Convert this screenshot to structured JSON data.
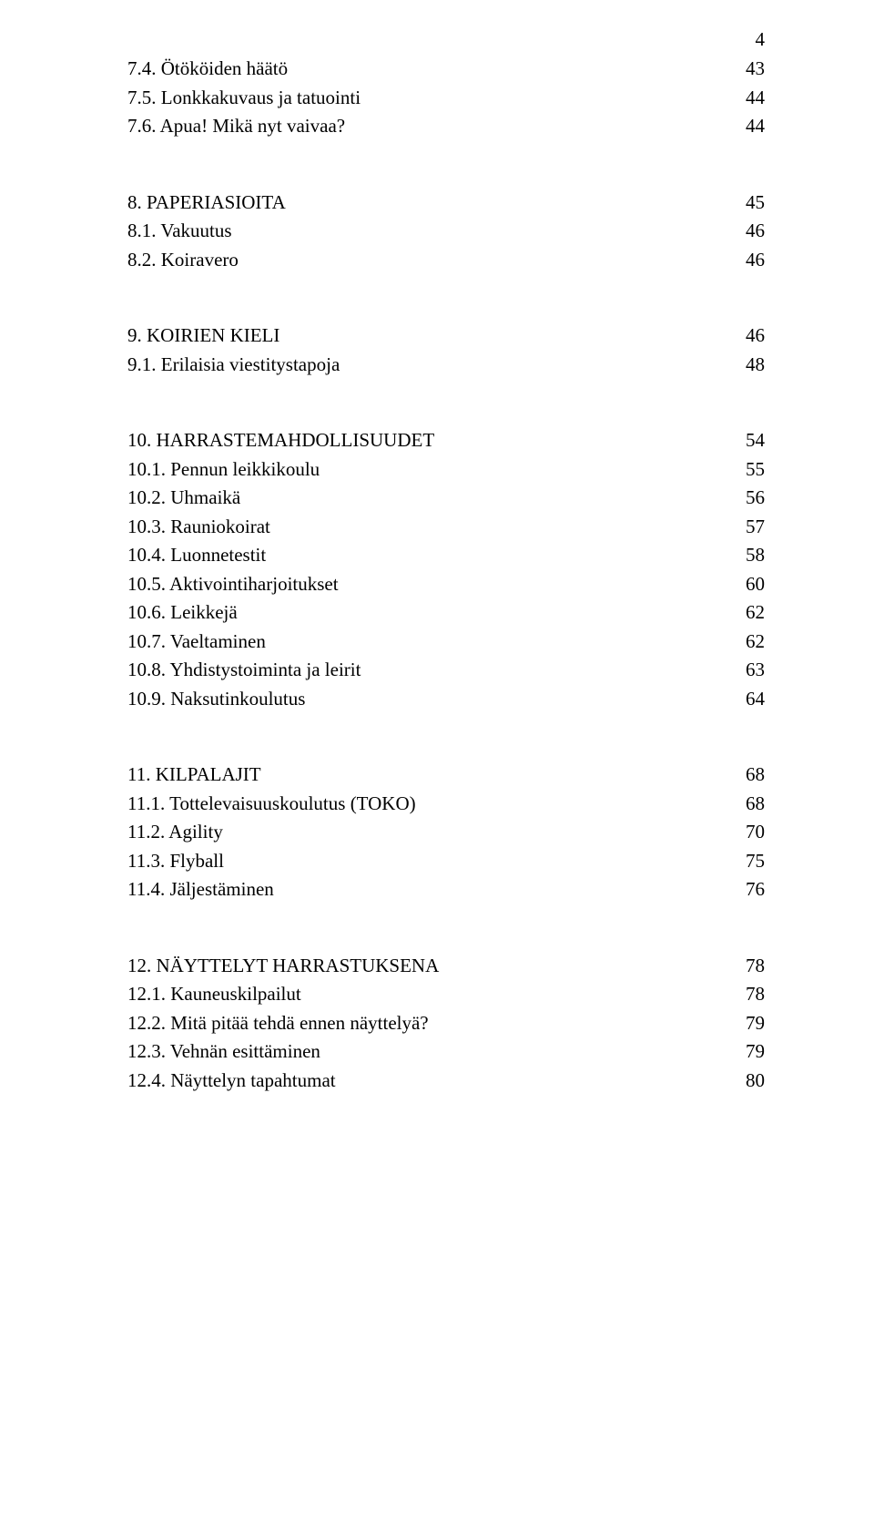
{
  "pageNumber": "4",
  "sections": [
    {
      "rows": [
        {
          "label": "7.4. Ötököiden häätö",
          "page": "43"
        },
        {
          "label": "7.5. Lonkkakuvaus ja tatuointi",
          "page": "44"
        },
        {
          "label": "7.6. Apua! Mikä nyt vaivaa?",
          "page": "44"
        }
      ]
    },
    {
      "rows": [
        {
          "label": "8. PAPERIASIOITA",
          "page": "45"
        },
        {
          "label": "8.1. Vakuutus",
          "page": "46"
        },
        {
          "label": "8.2. Koiravero",
          "page": "46"
        }
      ]
    },
    {
      "rows": [
        {
          "label": "9. KOIRIEN KIELI",
          "page": "46"
        },
        {
          "label": "9.1. Erilaisia viestitystapoja",
          "page": "48"
        }
      ]
    },
    {
      "rows": [
        {
          "label": "10. HARRASTEMAHDOLLISUUDET",
          "page": "54"
        },
        {
          "label": "10.1. Pennun leikkikoulu",
          "page": "55"
        },
        {
          "label": "10.2. Uhmaikä",
          "page": "56"
        },
        {
          "label": "10.3. Rauniokoirat",
          "page": "57"
        },
        {
          "label": "10.4. Luonnetestit",
          "page": "58"
        },
        {
          "label": "10.5. Aktivointiharjoitukset",
          "page": "60"
        },
        {
          "label": "10.6. Leikkejä",
          "page": "62"
        },
        {
          "label": "10.7. Vaeltaminen",
          "page": "62"
        },
        {
          "label": "10.8. Yhdistystoiminta ja leirit",
          "page": "63"
        },
        {
          "label": "10.9. Naksutinkoulutus",
          "page": "64"
        }
      ]
    },
    {
      "rows": [
        {
          "label": "11. KILPALAJIT",
          "page": "68"
        },
        {
          "label": "11.1. Tottelevaisuuskoulutus (TOKO)",
          "page": "68"
        },
        {
          "label": "11.2. Agility",
          "page": "70"
        },
        {
          "label": "11.3. Flyball",
          "page": "75"
        },
        {
          "label": "11.4. Jäljestäminen",
          "page": "76"
        }
      ]
    },
    {
      "rows": [
        {
          "label": "12. NÄYTTELYT HARRASTUKSENA",
          "page": "78"
        },
        {
          "label": "12.1. Kauneuskilpailut",
          "page": "78"
        },
        {
          "label": "12.2. Mitä pitää tehdä ennen näyttelyä?",
          "page": "79"
        },
        {
          "label": "12.3. Vehnän esittäminen",
          "page": "79"
        },
        {
          "label": "12.4. Näyttelyn tapahtumat",
          "page": "80"
        }
      ]
    }
  ]
}
